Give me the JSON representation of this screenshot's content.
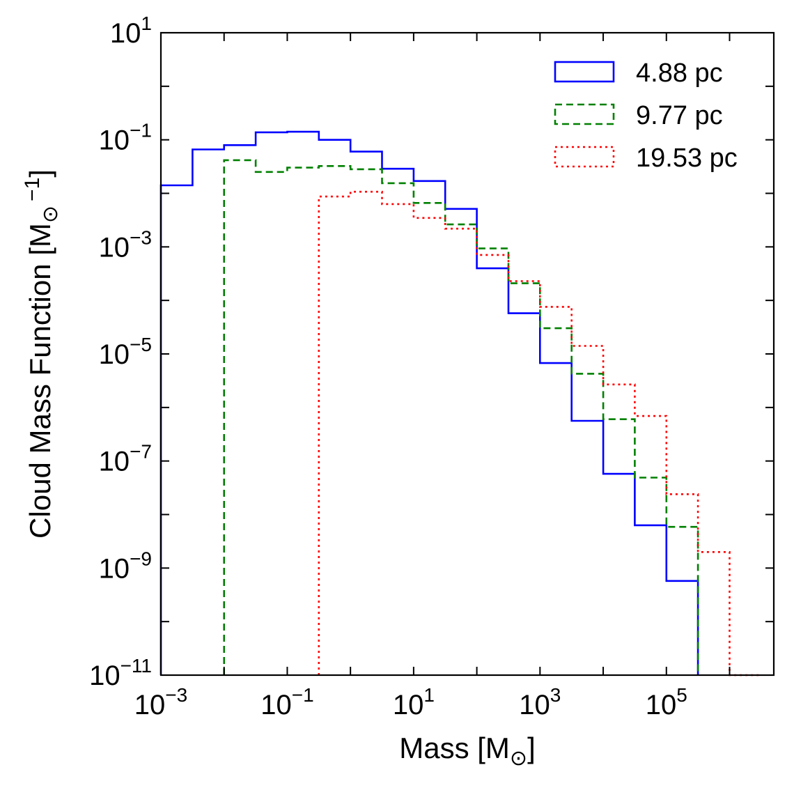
{
  "chart_data": {
    "type": "step-histogram",
    "xlabel": "Mass [M",
    "xlabel_sub": "⊙",
    "xlabel_tail": "]",
    "ylabel": "Cloud Mass Function [M",
    "ylabel_sub": "⊙",
    "ylabel_sup": "−1",
    "ylabel_tail": "]",
    "xscale": "log",
    "yscale": "log",
    "xlim_log10": [
      -3,
      6.7
    ],
    "ylim_log10": [
      -11,
      1
    ],
    "x_ticks": [
      {
        "base": "10",
        "exp": "−3",
        "log10": -3
      },
      {
        "base": "10",
        "exp": "−1",
        "log10": -1
      },
      {
        "base": "10",
        "exp": "1",
        "log10": 1
      },
      {
        "base": "10",
        "exp": "3",
        "log10": 3
      },
      {
        "base": "10",
        "exp": "5",
        "log10": 5
      }
    ],
    "y_ticks": [
      {
        "base": "10",
        "exp": "−11",
        "log10": -11
      },
      {
        "base": "10",
        "exp": "−9",
        "log10": -9
      },
      {
        "base": "10",
        "exp": "−7",
        "log10": -7
      },
      {
        "base": "10",
        "exp": "−5",
        "log10": -5
      },
      {
        "base": "10",
        "exp": "−3",
        "log10": -3
      },
      {
        "base": "10",
        "exp": "−1",
        "log10": -1
      },
      {
        "base": "10",
        "exp": "1",
        "log10": 1
      }
    ],
    "legend_position": "top-right",
    "series": [
      {
        "name": "4.88 pc",
        "color": "#0000ff",
        "style": "solid",
        "bin_edges_log10": [
          -3.0,
          -2.5,
          -2.0,
          -1.5,
          -1.0,
          -0.5,
          0.0,
          0.5,
          1.0,
          1.5,
          2.0,
          2.5,
          3.0,
          3.5,
          4.0,
          4.5,
          5.0,
          5.5
        ],
        "values_log10": [
          -1.85,
          -1.18,
          -1.1,
          -0.86,
          -0.85,
          -1.0,
          -1.22,
          -1.54,
          -1.77,
          -2.29,
          -3.4,
          -4.24,
          -5.17,
          -6.25,
          -7.24,
          -8.2,
          -9.24,
          -11.0
        ]
      },
      {
        "name": "9.77 pc",
        "color": "#008000",
        "style": "dashed",
        "bin_edges_log10": [
          -2.0,
          -1.5,
          -1.0,
          -0.5,
          0.0,
          0.5,
          1.0,
          1.5,
          2.0,
          2.5,
          3.0,
          3.5,
          4.0,
          4.5,
          5.0,
          5.5
        ],
        "values_log10": [
          -1.38,
          -1.6,
          -1.52,
          -1.49,
          -1.55,
          -1.81,
          -2.18,
          -2.58,
          -3.03,
          -3.68,
          -4.52,
          -5.37,
          -6.22,
          -7.31,
          -8.23,
          -11.0
        ]
      },
      {
        "name": "19.53 pc",
        "color": "#ff0000",
        "style": "dotted",
        "bin_edges_log10": [
          -0.5,
          0.0,
          0.5,
          1.0,
          1.5,
          2.0,
          2.5,
          3.0,
          3.5,
          4.0,
          4.5,
          5.0,
          5.5,
          6.0,
          6.5
        ],
        "values_log10": [
          -2.06,
          -1.97,
          -2.2,
          -2.46,
          -2.66,
          -3.15,
          -3.64,
          -4.12,
          -4.85,
          -5.57,
          -6.16,
          -7.62,
          -8.7,
          -11.0
        ]
      }
    ]
  }
}
